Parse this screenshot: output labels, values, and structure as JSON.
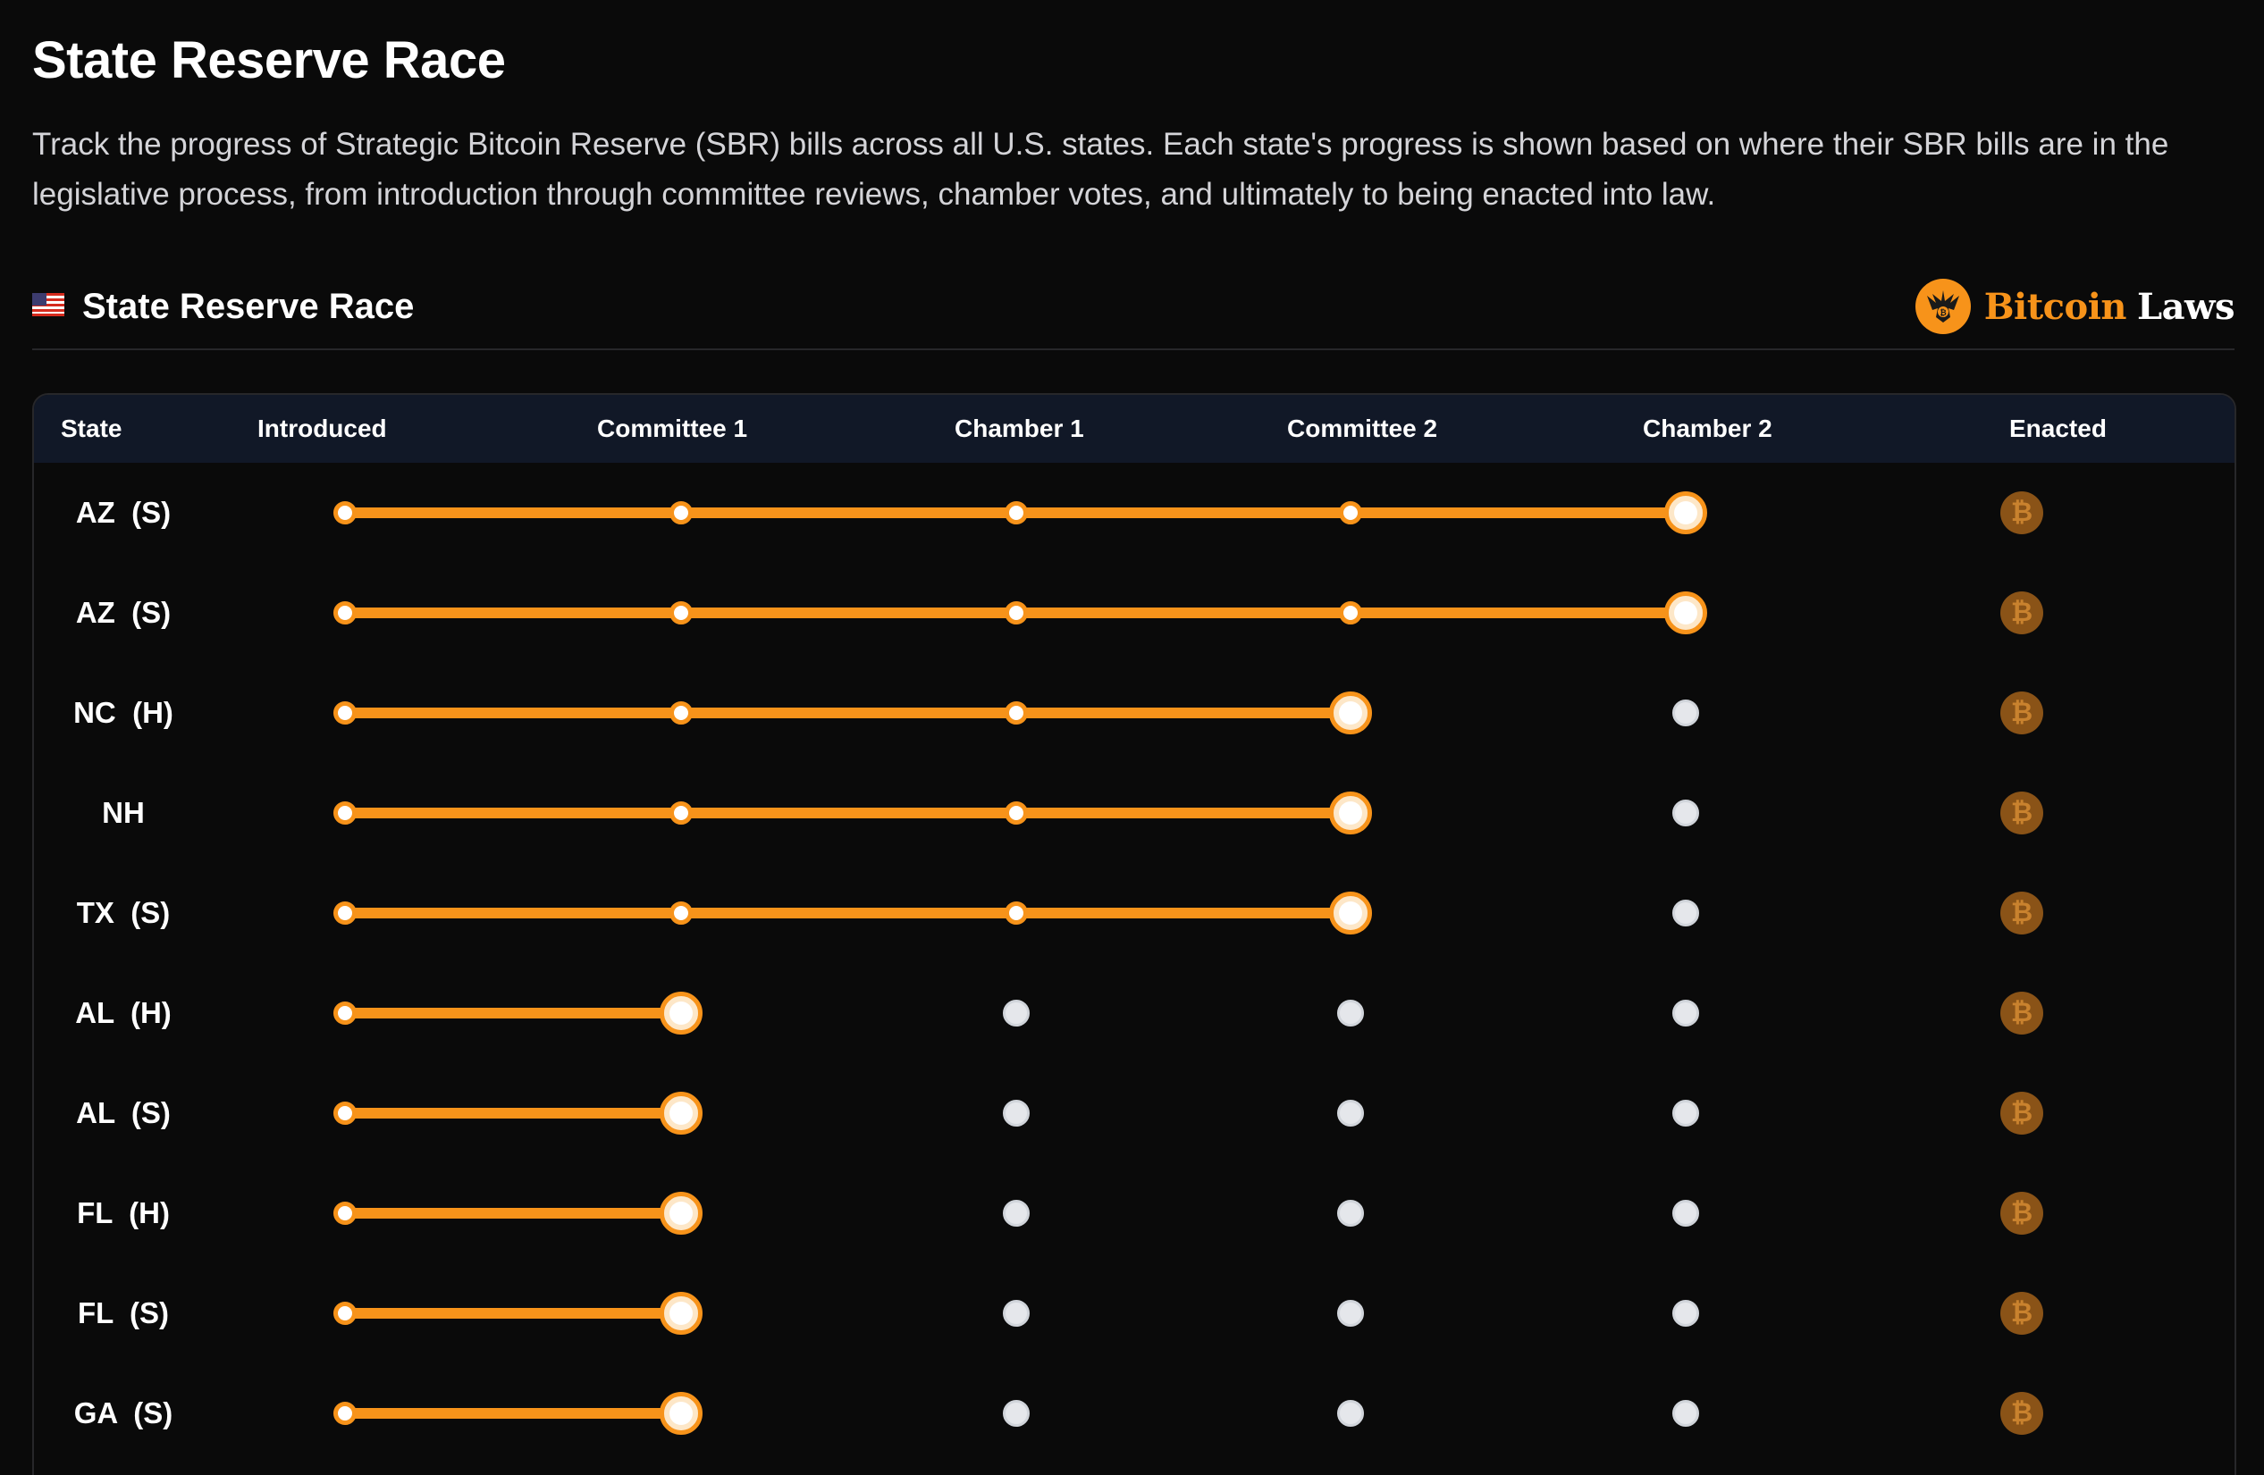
{
  "page": {
    "title": "State Reserve Race",
    "description": "Track the progress of Strategic Bitcoin Reserve (SBR) bills across all U.S. states. Each state's progress is shown based on where their SBR bills are in the legislative process, from introduction through committee reviews, chamber votes, and ultimately to being enacted into law."
  },
  "section": {
    "flag_icon": "us-flag-icon",
    "title": "State Reserve Race",
    "brand": {
      "logo_icon": "bitcoin-laws-eagle-logo-icon",
      "name_part1": "Bitcoin",
      "name_part2": "Laws"
    }
  },
  "table": {
    "columns": [
      "State",
      "Introduced",
      "Committee 1",
      "Chamber 1",
      "Committee 2",
      "Chamber 2",
      "Enacted"
    ],
    "stages": [
      "Introduced",
      "Committee 1",
      "Chamber 1",
      "Committee 2",
      "Chamber 2",
      "Enacted"
    ],
    "enacted_icon": "bitcoin-icon",
    "enacted_glyph": "₿",
    "rows": [
      {
        "state": "AZ  (S)",
        "current_stage": 4
      },
      {
        "state": "AZ  (S)",
        "current_stage": 4
      },
      {
        "state": "NC  (H)",
        "current_stage": 3
      },
      {
        "state": "NH",
        "current_stage": 3
      },
      {
        "state": "TX  (S)",
        "current_stage": 3
      },
      {
        "state": "AL  (H)",
        "current_stage": 1
      },
      {
        "state": "AL  (S)",
        "current_stage": 1
      },
      {
        "state": "FL  (H)",
        "current_stage": 1
      },
      {
        "state": "FL  (S)",
        "current_stage": 1
      },
      {
        "state": "GA  (S)",
        "current_stage": 1
      }
    ]
  },
  "colors": {
    "background": "#0a0a0a",
    "accent": "#f7931a",
    "header_bg": "#111827",
    "pending_dot": "#e5e7eb",
    "enacted_icon_bg": "#8a5317"
  }
}
